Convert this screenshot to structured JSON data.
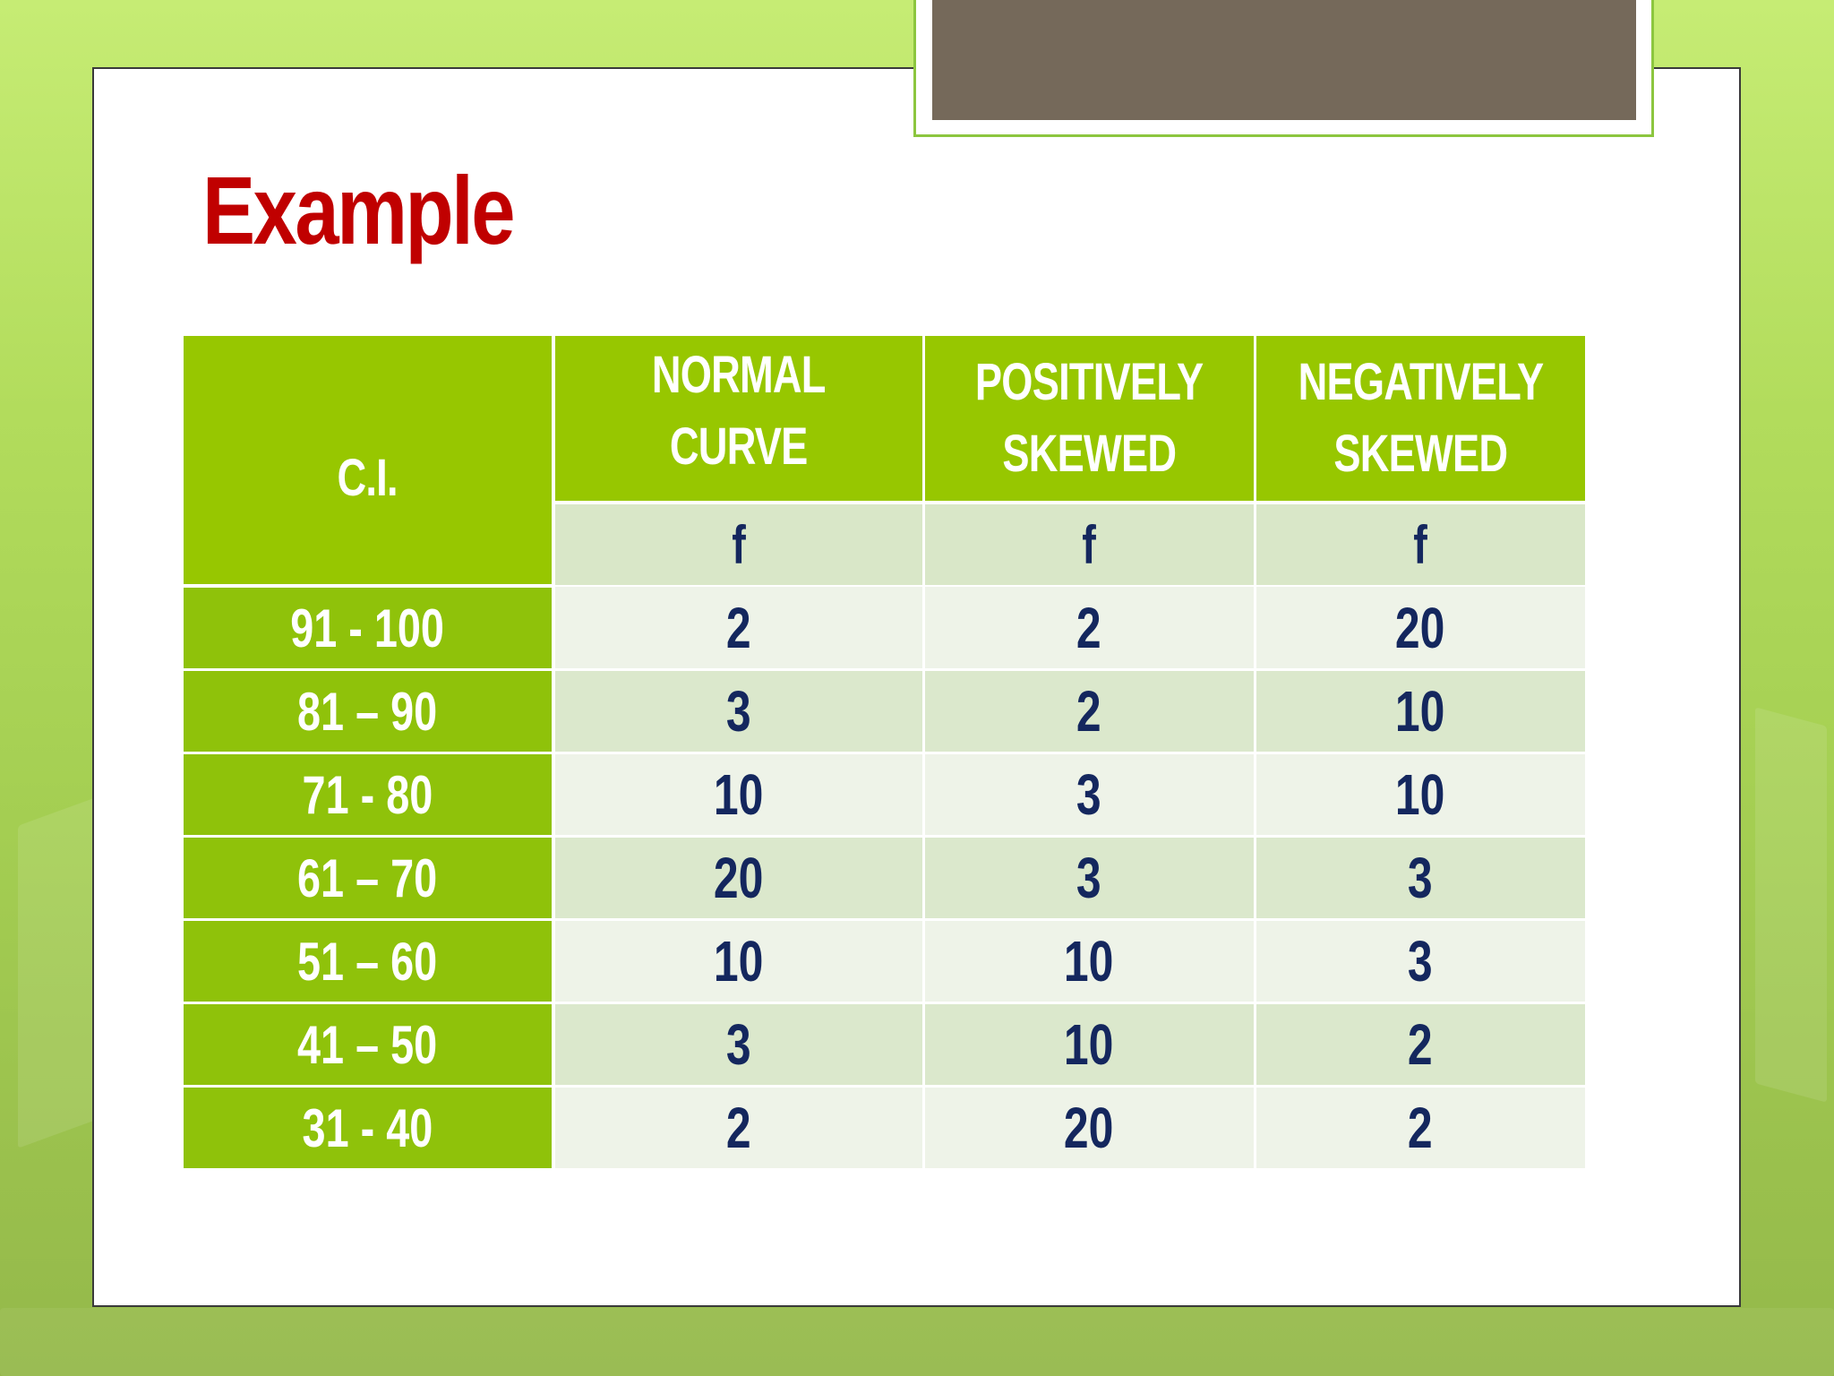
{
  "slide": {
    "title": "Example"
  },
  "table": {
    "headers": {
      "ci": "C.I.",
      "normal": "NORMAL CURVE",
      "positive_line1": "POSITIVELY",
      "positive_line2": "SKEWED",
      "negative_line1": "NEGATIVELY",
      "negative_line2": "SKEWED"
    },
    "subheaders": [
      "f",
      "f",
      "f"
    ],
    "rows": [
      {
        "ci": "91 - 100",
        "normal": "2",
        "positive": "2",
        "negative": "20"
      },
      {
        "ci": "81 – 90",
        "normal": "3",
        "positive": "2",
        "negative": "10"
      },
      {
        "ci": "71 - 80",
        "normal": "10",
        "positive": "3",
        "negative": "10"
      },
      {
        "ci": "61 – 70",
        "normal": "20",
        "positive": "3",
        "negative": "3"
      },
      {
        "ci": "51 – 60",
        "normal": "10",
        "positive": "10",
        "negative": "3"
      },
      {
        "ci": "41 – 50",
        "normal": "3",
        "positive": "10",
        "negative": "2"
      },
      {
        "ci": "31 - 40",
        "normal": "2",
        "positive": "20",
        "negative": "2"
      }
    ]
  },
  "colors": {
    "title": "#c00000",
    "header_green": "#97c700",
    "value_text": "#14275e",
    "tab_fill": "#75695a"
  }
}
